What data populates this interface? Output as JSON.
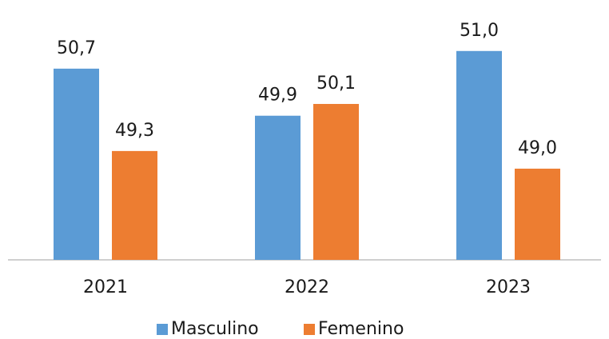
{
  "chart_data": {
    "type": "bar",
    "categories": [
      "2021",
      "2022",
      "2023"
    ],
    "series": [
      {
        "name": "Masculino",
        "color": "#5b9bd5",
        "values": [
          50.7,
          49.9,
          51.0
        ],
        "value_labels": [
          "50,7",
          "49,9",
          "51,0"
        ]
      },
      {
        "name": "Femenino",
        "color": "#ed7d31",
        "values": [
          49.3,
          50.1,
          49.0
        ],
        "value_labels": [
          "49,3",
          "50,1",
          "49,0"
        ]
      }
    ],
    "ylim": [
      47.45,
      51.5
    ],
    "legend": "bottom"
  }
}
